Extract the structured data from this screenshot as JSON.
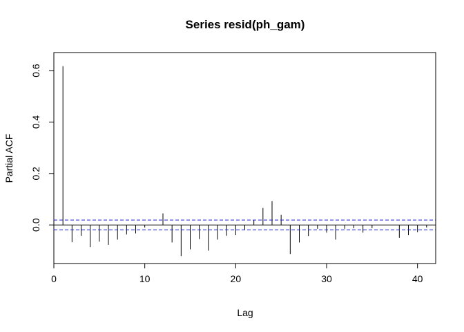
{
  "chart_data": {
    "type": "bar",
    "title": "Series  resid(ph_gam)",
    "xlabel": "Lag",
    "ylabel": "Partial ACF",
    "xlim": [
      0,
      42
    ],
    "ylim": [
      -0.15,
      0.67
    ],
    "xticks": [
      0,
      10,
      20,
      30,
      40
    ],
    "yticks": [
      0.0,
      0.2,
      0.4,
      0.6
    ],
    "x": [
      1,
      2,
      3,
      4,
      5,
      6,
      7,
      8,
      9,
      10,
      11,
      12,
      13,
      14,
      15,
      16,
      17,
      18,
      19,
      20,
      21,
      22,
      23,
      24,
      25,
      26,
      27,
      28,
      29,
      30,
      31,
      32,
      33,
      34,
      35,
      36,
      37,
      38,
      39,
      40,
      41
    ],
    "values": [
      0.617,
      -0.067,
      -0.042,
      -0.086,
      -0.065,
      -0.077,
      -0.057,
      -0.037,
      -0.033,
      -0.01,
      0.0,
      0.045,
      -0.068,
      -0.121,
      -0.095,
      -0.055,
      -0.1,
      -0.057,
      -0.042,
      -0.04,
      -0.018,
      0.018,
      0.066,
      0.092,
      0.039,
      -0.113,
      -0.068,
      -0.043,
      -0.015,
      -0.03,
      -0.057,
      -0.015,
      -0.013,
      -0.03,
      -0.013,
      0.0,
      0.0,
      -0.05,
      -0.04,
      -0.028,
      -0.01
    ],
    "ci_upper": 0.019,
    "ci_lower": -0.019,
    "grid": false,
    "colors": {
      "bars": "#000000",
      "ci": "#1c1cd6",
      "zero": "#000000"
    }
  }
}
